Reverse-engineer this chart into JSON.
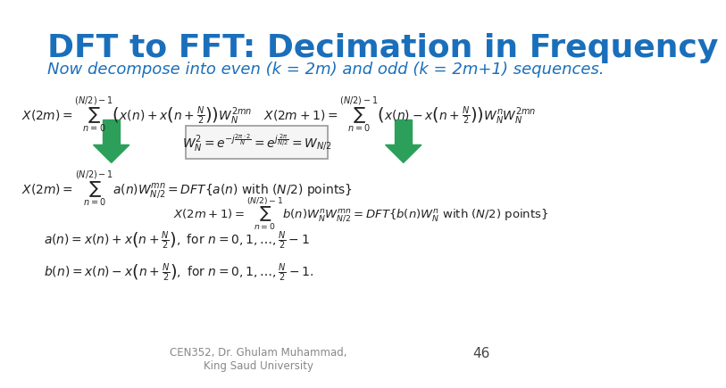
{
  "title": "DFT to FFT: Decimation in Frequency",
  "title_color": "#1a6fbb",
  "title_fontsize": 26,
  "subtitle": "Now decompose into even (k = 2m) and odd (k = 2m+1) sequences.",
  "subtitle_color": "#1a6fbb",
  "subtitle_fontsize": 13,
  "footer": "CEN352, Dr. Ghulam Muhammad,\nKing Saud University",
  "footer_color": "#888888",
  "page_number": "46",
  "bg_color": "#ffffff",
  "arrow_color": "#2ca05a",
  "math_color": "#222222"
}
